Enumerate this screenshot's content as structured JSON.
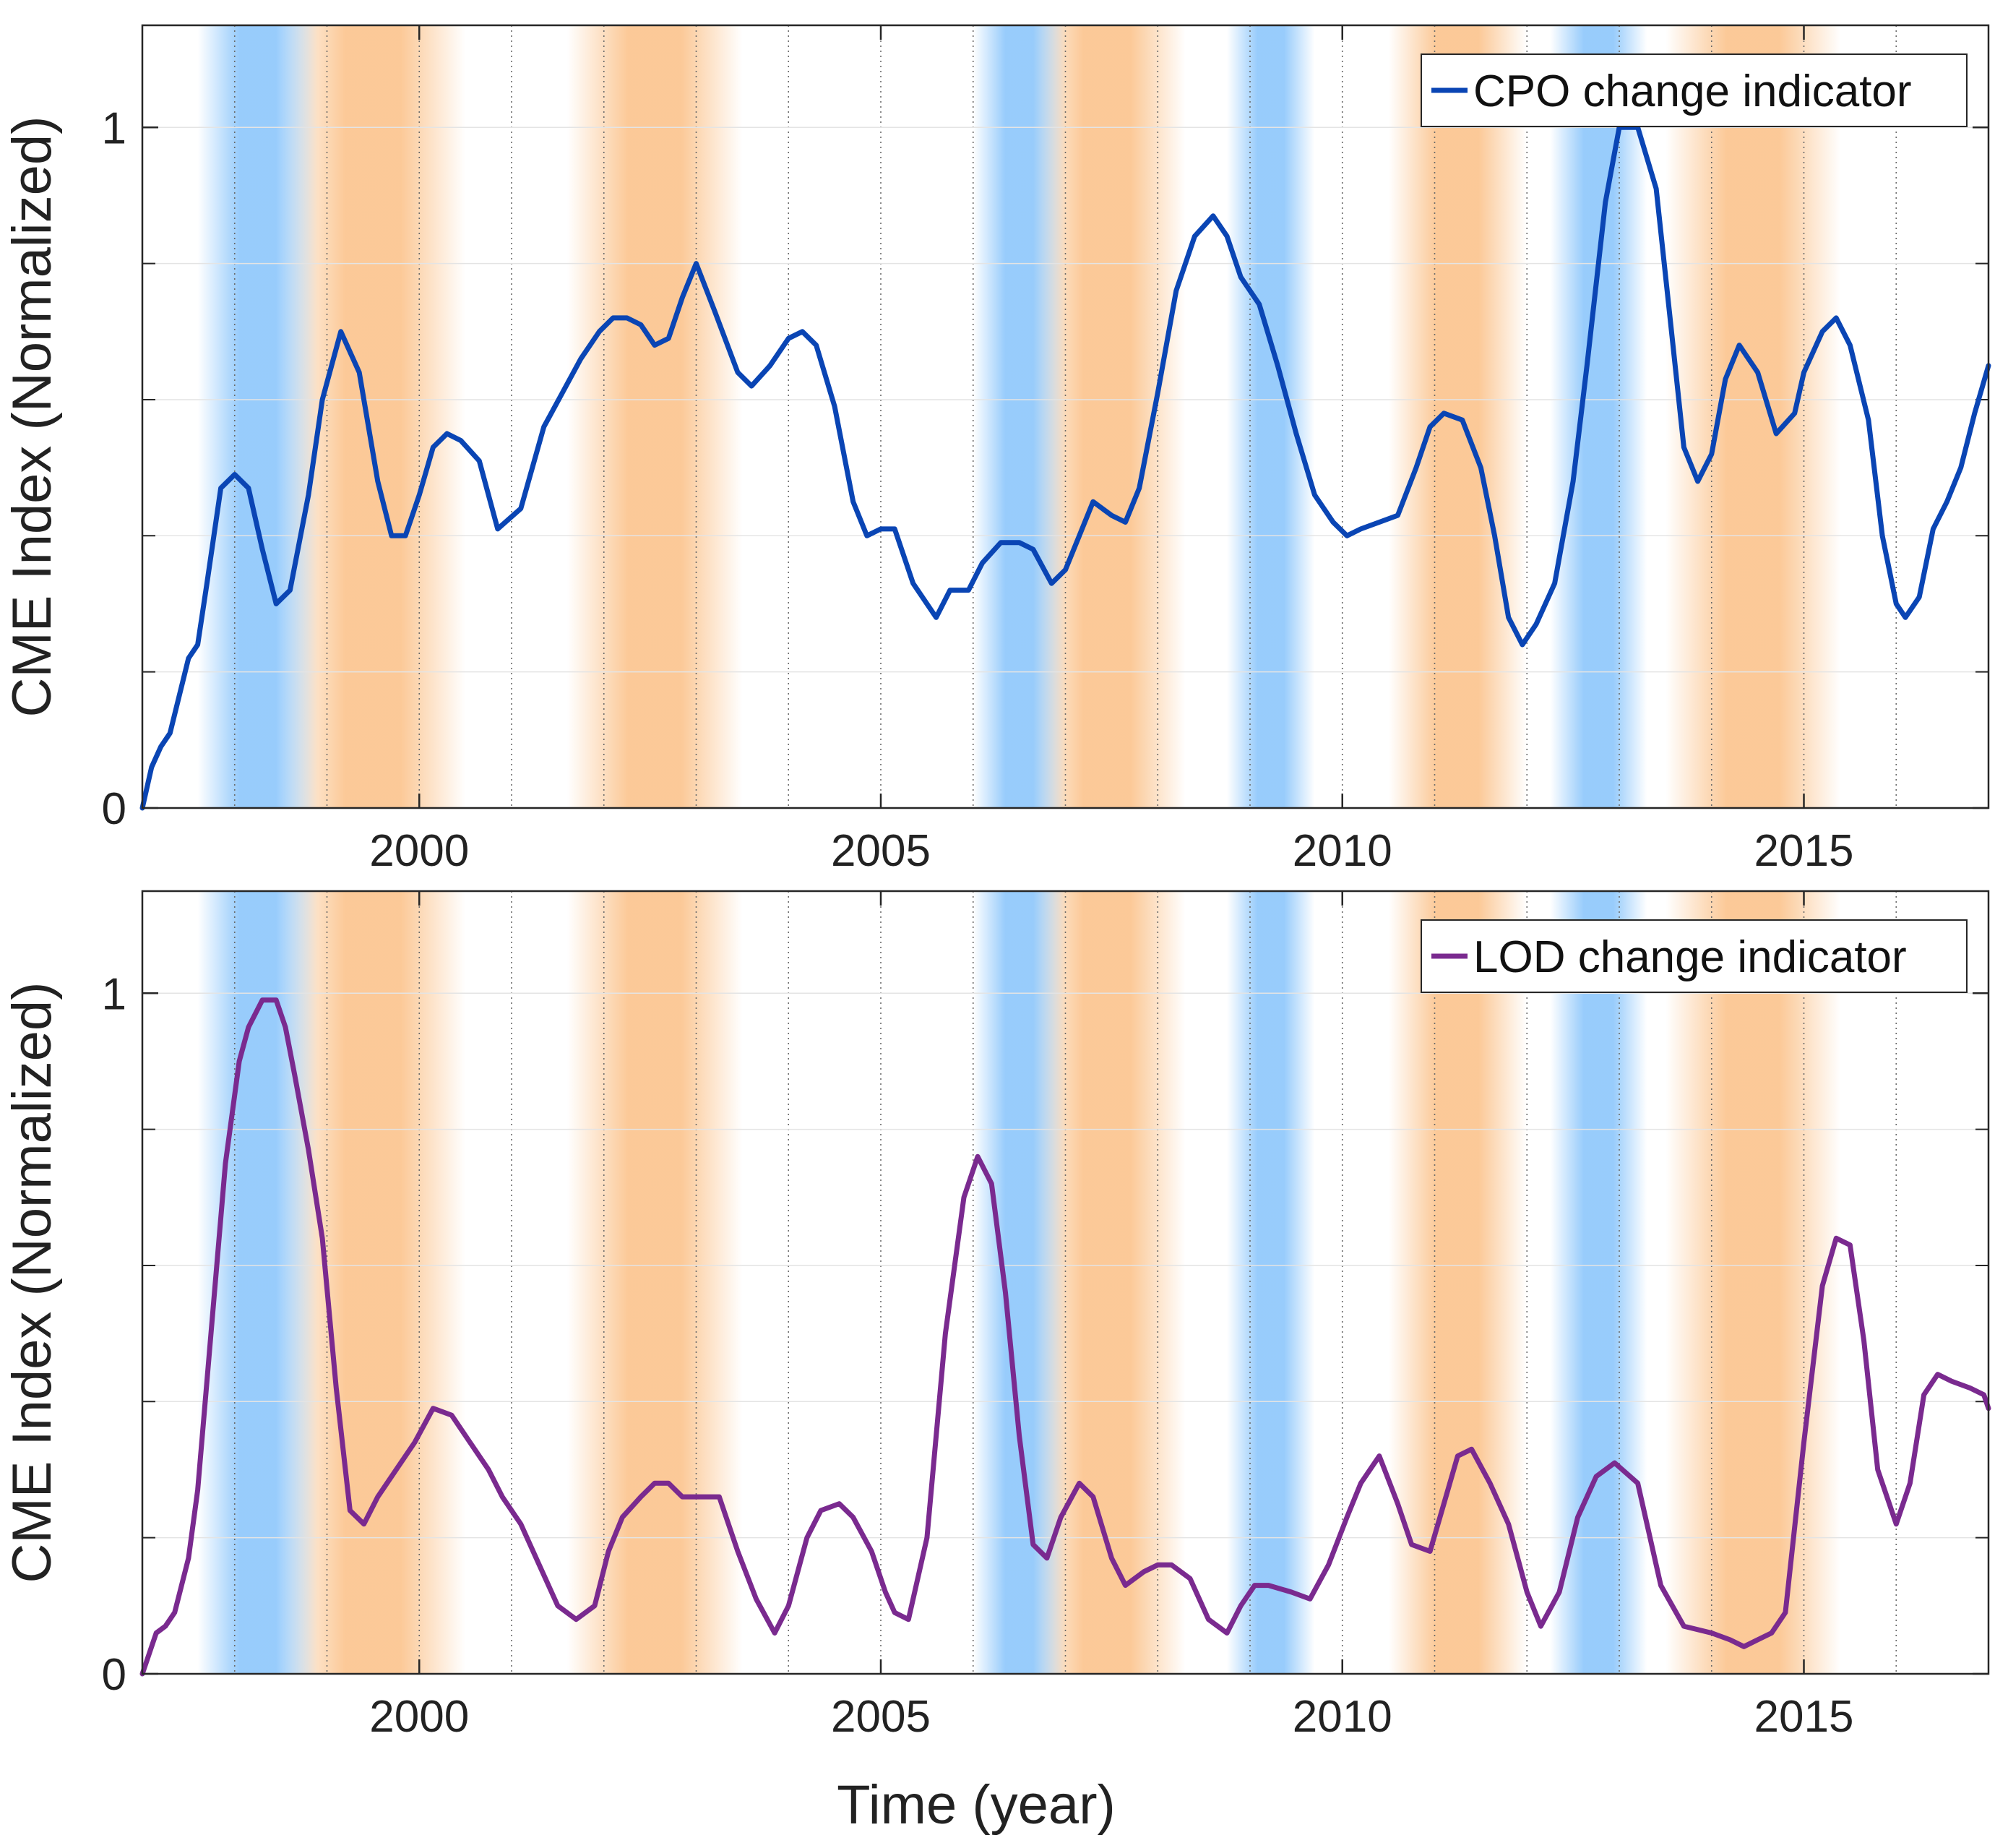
{
  "figure": {
    "xlabel": "Time (year)",
    "ylabel": "CME Index (Normalized)"
  },
  "colors": {
    "cpo_line": "#0a45b4",
    "lod_line": "#7a2a8f",
    "el_nino_band": "#fbc38c",
    "la_nina_band": "#8cc6fb",
    "grid": "#e4e4e4",
    "axis": "#262626"
  },
  "bands": {
    "blue": [
      [
        1997.6,
        1998.9
      ],
      [
        2006.0,
        2007.0
      ],
      [
        2008.75,
        2009.7
      ],
      [
        2012.25,
        2013.3
      ]
    ],
    "orange": [
      [
        1998.5,
        2000.5
      ],
      [
        2001.6,
        2003.5
      ],
      [
        2006.6,
        2008.3
      ],
      [
        2010.5,
        2012.0
      ],
      [
        2013.5,
        2015.4
      ]
    ]
  },
  "chart_data": [
    {
      "type": "line",
      "title": "",
      "xlabel": "",
      "ylabel": "CME Index (Normalized)",
      "xlim": [
        1997.0,
        2017.0
      ],
      "ylim": [
        0,
        1.15
      ],
      "xticks": [
        2000,
        2005,
        2010,
        2015
      ],
      "xtick_labels": [
        "2000",
        "2005",
        "2010",
        "2015"
      ],
      "yticks": [
        0,
        1
      ],
      "ytick_labels": [
        "0",
        "1"
      ],
      "legend": "top-right",
      "series": [
        {
          "name": "CPO change indicator",
          "x": [
            1997.0,
            1997.1,
            1997.2,
            1997.3,
            1997.5,
            1997.6,
            1997.7,
            1997.85,
            1998.0,
            1998.15,
            1998.3,
            1998.45,
            1998.6,
            1998.8,
            1998.95,
            1999.15,
            1999.35,
            1999.55,
            1999.7,
            1999.85,
            2000.0,
            2000.15,
            2000.3,
            2000.45,
            2000.65,
            2000.85,
            2001.1,
            2001.35,
            2001.55,
            2001.75,
            2001.95,
            2002.1,
            2002.25,
            2002.4,
            2002.55,
            2002.7,
            2002.85,
            2003.0,
            2003.2,
            2003.45,
            2003.6,
            2003.8,
            2004.0,
            2004.15,
            2004.3,
            2004.5,
            2004.7,
            2004.85,
            2005.0,
            2005.15,
            2005.35,
            2005.6,
            2005.75,
            2005.95,
            2006.1,
            2006.3,
            2006.5,
            2006.65,
            2006.85,
            2007.0,
            2007.15,
            2007.3,
            2007.5,
            2007.65,
            2007.8,
            2008.0,
            2008.2,
            2008.4,
            2008.6,
            2008.75,
            2008.9,
            2009.1,
            2009.3,
            2009.5,
            2009.7,
            2009.9,
            2010.05,
            2010.2,
            2010.4,
            2010.6,
            2010.8,
            2010.95,
            2011.1,
            2011.3,
            2011.5,
            2011.65,
            2011.8,
            2011.95,
            2012.1,
            2012.3,
            2012.5,
            2012.65,
            2012.85,
            2013.0,
            2013.2,
            2013.4,
            2013.55,
            2013.7,
            2013.85,
            2014.0,
            2014.15,
            2014.3,
            2014.5,
            2014.7,
            2014.9,
            2015.0,
            2015.2,
            2015.35,
            2015.5,
            2015.7,
            2015.85,
            2016.0,
            2016.1,
            2016.25,
            2016.4,
            2016.55,
            2016.7,
            2016.85,
            2017.0
          ],
          "y": [
            0.0,
            0.06,
            0.09,
            0.11,
            0.22,
            0.24,
            0.33,
            0.47,
            0.49,
            0.47,
            0.38,
            0.3,
            0.32,
            0.46,
            0.6,
            0.7,
            0.64,
            0.48,
            0.4,
            0.4,
            0.46,
            0.53,
            0.55,
            0.54,
            0.51,
            0.41,
            0.44,
            0.56,
            0.61,
            0.66,
            0.7,
            0.72,
            0.72,
            0.71,
            0.68,
            0.69,
            0.75,
            0.8,
            0.73,
            0.64,
            0.62,
            0.65,
            0.69,
            0.7,
            0.68,
            0.59,
            0.45,
            0.4,
            0.41,
            0.41,
            0.33,
            0.28,
            0.32,
            0.32,
            0.36,
            0.39,
            0.39,
            0.38,
            0.33,
            0.35,
            0.4,
            0.45,
            0.43,
            0.42,
            0.47,
            0.61,
            0.76,
            0.84,
            0.87,
            0.84,
            0.78,
            0.74,
            0.65,
            0.55,
            0.46,
            0.42,
            0.4,
            0.41,
            0.42,
            0.43,
            0.5,
            0.56,
            0.58,
            0.57,
            0.5,
            0.4,
            0.28,
            0.24,
            0.27,
            0.33,
            0.48,
            0.65,
            0.89,
            1.0,
            1.0,
            0.91,
            0.72,
            0.53,
            0.48,
            0.52,
            0.63,
            0.68,
            0.64,
            0.55,
            0.58,
            0.64,
            0.7,
            0.72,
            0.68,
            0.57,
            0.4,
            0.3,
            0.28,
            0.31,
            0.41,
            0.45,
            0.5,
            0.58,
            0.65
          ]
        }
      ]
    },
    {
      "type": "line",
      "title": "",
      "xlabel": "Time (year)",
      "ylabel": "CME Index (Normalized)",
      "xlim": [
        1997.0,
        2017.0
      ],
      "ylim": [
        0,
        1.15
      ],
      "xticks": [
        2000,
        2005,
        2010,
        2015
      ],
      "xtick_labels": [
        "2000",
        "2005",
        "2010",
        "2015"
      ],
      "yticks": [
        0,
        1
      ],
      "ytick_labels": [
        "0",
        "1"
      ],
      "legend": "top-right",
      "series": [
        {
          "name": "LOD change indicator",
          "x": [
            1997.0,
            1997.05,
            1997.15,
            1997.25,
            1997.35,
            1997.5,
            1997.6,
            1997.75,
            1997.9,
            1998.05,
            1998.15,
            1998.3,
            1998.45,
            1998.55,
            1998.65,
            1998.8,
            1998.95,
            1999.1,
            1999.25,
            1999.4,
            1999.55,
            1999.75,
            1999.95,
            2000.15,
            2000.35,
            2000.55,
            2000.75,
            2000.9,
            2001.1,
            2001.3,
            2001.5,
            2001.7,
            2001.9,
            2002.05,
            2002.2,
            2002.4,
            2002.55,
            2002.7,
            2002.85,
            2003.0,
            2003.25,
            2003.45,
            2003.65,
            2003.85,
            2004.0,
            2004.2,
            2004.35,
            2004.55,
            2004.7,
            2004.9,
            2005.05,
            2005.15,
            2005.3,
            2005.5,
            2005.7,
            2005.9,
            2006.05,
            2006.2,
            2006.35,
            2006.5,
            2006.65,
            2006.8,
            2006.95,
            2007.15,
            2007.3,
            2007.5,
            2007.65,
            2007.85,
            2008.0,
            2008.15,
            2008.35,
            2008.55,
            2008.75,
            2008.9,
            2009.05,
            2009.2,
            2009.45,
            2009.65,
            2009.85,
            2010.05,
            2010.2,
            2010.4,
            2010.6,
            2010.75,
            2010.95,
            2011.1,
            2011.25,
            2011.4,
            2011.6,
            2011.8,
            2012.0,
            2012.15,
            2012.35,
            2012.55,
            2012.75,
            2012.95,
            2013.2,
            2013.45,
            2013.7,
            2014.0,
            2014.2,
            2014.35,
            2014.5,
            2014.65,
            2014.8,
            2015.0,
            2015.2,
            2015.35,
            2015.5,
            2015.65,
            2015.8,
            2016.0,
            2016.15,
            2016.3,
            2016.45,
            2016.6,
            2016.8,
            2016.95,
            2017.0
          ],
          "y": [
            0.0,
            0.02,
            0.06,
            0.07,
            0.09,
            0.17,
            0.27,
            0.51,
            0.75,
            0.9,
            0.95,
            0.99,
            0.99,
            0.95,
            0.88,
            0.77,
            0.64,
            0.42,
            0.24,
            0.22,
            0.26,
            0.3,
            0.34,
            0.39,
            0.38,
            0.34,
            0.3,
            0.26,
            0.22,
            0.16,
            0.1,
            0.08,
            0.1,
            0.18,
            0.23,
            0.26,
            0.28,
            0.28,
            0.26,
            0.26,
            0.26,
            0.18,
            0.11,
            0.06,
            0.1,
            0.2,
            0.24,
            0.25,
            0.23,
            0.18,
            0.12,
            0.09,
            0.08,
            0.2,
            0.5,
            0.7,
            0.76,
            0.72,
            0.56,
            0.35,
            0.19,
            0.17,
            0.23,
            0.28,
            0.26,
            0.17,
            0.13,
            0.15,
            0.16,
            0.16,
            0.14,
            0.08,
            0.06,
            0.1,
            0.13,
            0.13,
            0.12,
            0.11,
            0.16,
            0.23,
            0.28,
            0.32,
            0.25,
            0.19,
            0.18,
            0.25,
            0.32,
            0.33,
            0.28,
            0.22,
            0.12,
            0.07,
            0.12,
            0.23,
            0.29,
            0.31,
            0.28,
            0.13,
            0.07,
            0.06,
            0.05,
            0.04,
            0.05,
            0.06,
            0.09,
            0.34,
            0.57,
            0.64,
            0.63,
            0.49,
            0.3,
            0.22,
            0.28,
            0.41,
            0.44,
            0.43,
            0.42,
            0.41,
            0.39
          ]
        }
      ]
    }
  ]
}
